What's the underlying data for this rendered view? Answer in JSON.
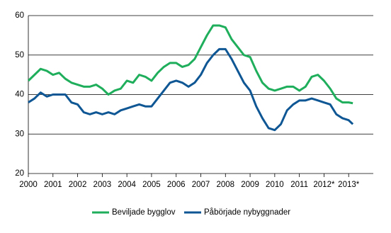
{
  "chart_data": {
    "type": "line",
    "x": [
      2000,
      2000.25,
      2000.5,
      2000.75,
      2001,
      2001.25,
      2001.5,
      2001.75,
      2002,
      2002.25,
      2002.5,
      2002.75,
      2003,
      2003.25,
      2003.5,
      2003.75,
      2004,
      2004.25,
      2004.5,
      2004.75,
      2005,
      2005.25,
      2005.5,
      2005.75,
      2006,
      2006.25,
      2006.5,
      2006.75,
      2007,
      2007.25,
      2007.5,
      2007.75,
      2008,
      2008.25,
      2008.5,
      2008.75,
      2009,
      2009.25,
      2009.5,
      2009.75,
      2010,
      2010.25,
      2010.5,
      2010.75,
      2011,
      2011.25,
      2011.5,
      2011.75,
      2012,
      2012.25,
      2012.5,
      2012.75,
      2013,
      2013.17
    ],
    "series": [
      {
        "name": "Beviljade bygglov",
        "color": "#1fae5b",
        "values": [
          43.5,
          45,
          46.5,
          46,
          45,
          45.5,
          44,
          43,
          42.5,
          42,
          42,
          42.5,
          41.5,
          40,
          41,
          41.5,
          43.5,
          43,
          45,
          44.5,
          43.5,
          45.5,
          47,
          48,
          48,
          47,
          47.5,
          49,
          52,
          55,
          57.5,
          57.5,
          57,
          54,
          52,
          50,
          49.5,
          46,
          43,
          41.5,
          41,
          41.5,
          42,
          42,
          41,
          42,
          44.5,
          45,
          43.5,
          41.5,
          39,
          38,
          38,
          37.8
        ]
      },
      {
        "name": "Påbörjade nybyggnader",
        "color": "#0e5794",
        "values": [
          38,
          39,
          40.5,
          39.5,
          40,
          40,
          40,
          38,
          37.5,
          35.5,
          35,
          35.5,
          35,
          35.5,
          35,
          36,
          36.5,
          37,
          37.5,
          37,
          37,
          39,
          41,
          43,
          43.5,
          43,
          42,
          43,
          45,
          48,
          50,
          51.5,
          51.5,
          49,
          46,
          43,
          41,
          37,
          34,
          31.5,
          31,
          32.5,
          36,
          37.5,
          38.5,
          38.5,
          39,
          38.5,
          38,
          37.5,
          35,
          34,
          33.5,
          32.5
        ]
      }
    ],
    "xlim": [
      2000,
      2014
    ],
    "xticks": [
      2000,
      2001,
      2002,
      2003,
      2004,
      2005,
      2006,
      2007,
      2008,
      2009,
      2010,
      2011,
      {
        "value": 2012,
        "label": "2012*"
      },
      {
        "value": 2013,
        "label": "2013*"
      }
    ],
    "ylim": [
      20,
      60
    ],
    "yticks": [
      20,
      30,
      40,
      50,
      60
    ],
    "grid": true,
    "legend": "bottom"
  }
}
